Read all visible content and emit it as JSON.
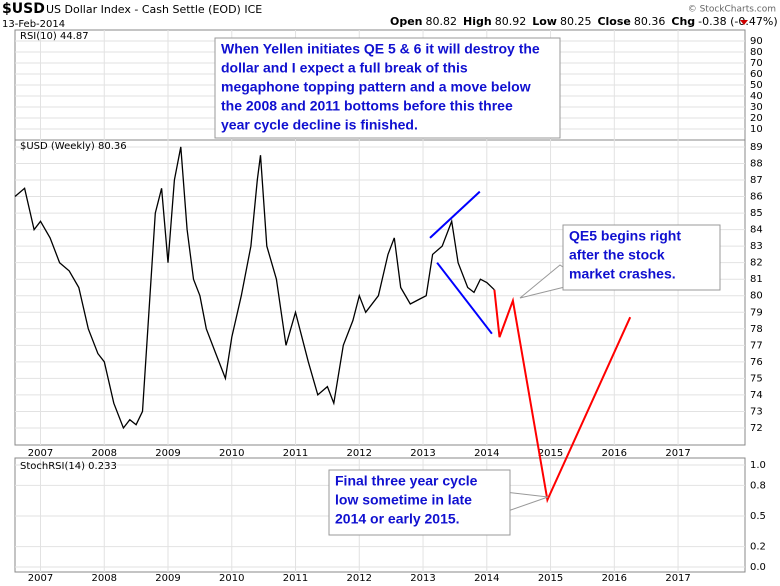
{
  "header": {
    "symbol": "$USD",
    "name": "US Dollar Index - Cash Settle (EOD) ICE",
    "date": "13-Feb-2014",
    "copyright": "© StockCharts.com",
    "quote": [
      {
        "label": "Open",
        "value": "80.82"
      },
      {
        "label": "High",
        "value": "80.92"
      },
      {
        "label": "Low",
        "value": "80.25"
      },
      {
        "label": "Close",
        "value": "80.36"
      },
      {
        "label": "Chg",
        "value": "-0.38 (-0.47%)"
      }
    ]
  },
  "rsi_panel": {
    "legend": "RSI(10) 44.87",
    "ylim": [
      0,
      100
    ],
    "yticks": [
      90,
      80,
      70,
      60,
      50,
      40,
      30,
      20,
      10
    ]
  },
  "stoch_panel": {
    "legend": "StochRSI(14) 0.233",
    "ylim": [
      -0.049,
      1.069
    ],
    "yticks": [
      {
        "value": 1,
        "label": "1.0"
      },
      0.8,
      0.5,
      0.2,
      {
        "value": 0,
        "label": "0.0"
      }
    ]
  },
  "annotations": [
    {
      "lines": [
        "When Yellen initiates QE 5 & 6 it will destroy the",
        "dollar and I expect a full break of this",
        "megaphone topping pattern and a move below",
        "the 2008 and 2011 bottoms before this three",
        "year cycle decline is finished."
      ]
    },
    {
      "lines": [
        "QE5 begins right",
        "after the stock",
        "market crashes."
      ]
    },
    {
      "lines": [
        "Final three year cycle",
        "low sometime in late",
        "2014 or early 2015."
      ]
    }
  ],
  "chart_data": {
    "type": "line",
    "grid": true,
    "xlim": [
      2006.6,
      2018.05
    ],
    "xticks": [
      2007,
      2008,
      2009,
      2010,
      2011,
      2012,
      2013,
      2014,
      2015,
      2016,
      2017
    ],
    "ylim": [
      70.97,
      89.42
    ],
    "yticks": [
      72,
      73,
      74,
      75,
      76,
      77,
      78,
      79,
      80,
      81,
      82,
      83,
      84,
      85,
      86,
      87,
      88,
      89
    ],
    "series": [
      {
        "name": "$USD (Weekly) 80.36",
        "color": "#000000",
        "x": [
          2006.6,
          2006.75,
          2006.9,
          2007.0,
          2007.15,
          2007.3,
          2007.45,
          2007.6,
          2007.75,
          2007.9,
          2008.0,
          2008.15,
          2008.3,
          2008.4,
          2008.5,
          2008.6,
          2008.7,
          2008.8,
          2008.9,
          2009.0,
          2009.1,
          2009.2,
          2009.3,
          2009.4,
          2009.5,
          2009.6,
          2009.75,
          2009.9,
          2010.0,
          2010.15,
          2010.3,
          2010.4,
          2010.45,
          2010.55,
          2010.7,
          2010.85,
          2011.0,
          2011.2,
          2011.35,
          2011.5,
          2011.6,
          2011.75,
          2011.9,
          2012.0,
          2012.1,
          2012.3,
          2012.45,
          2012.55,
          2012.65,
          2012.8,
          2012.95,
          2013.05,
          2013.15,
          2013.3,
          2013.45,
          2013.55,
          2013.7,
          2013.8,
          2013.9,
          2014.0,
          2014.12
        ],
        "values": [
          86,
          86.5,
          84,
          84.5,
          83.5,
          82,
          81.5,
          80.5,
          78,
          76.5,
          76,
          73.5,
          72,
          72.5,
          72.2,
          73,
          79,
          85,
          86.5,
          82,
          87,
          89,
          84,
          81,
          80,
          78,
          76.5,
          75,
          77.5,
          80,
          83,
          87,
          88.5,
          83,
          81,
          77,
          79,
          76,
          74,
          74.5,
          73.5,
          77,
          78.5,
          80,
          79,
          80,
          82.5,
          83.5,
          80.5,
          79.5,
          79.8,
          80,
          82.5,
          83,
          84.5,
          82,
          80.5,
          80.2,
          81,
          80.8,
          80.36
        ]
      },
      {
        "color": "#ff0000",
        "x": [
          2014.12,
          2014.2,
          2014.41,
          2014.95,
          2016.25
        ],
        "values": [
          80.36,
          77.5,
          79.7,
          67.65,
          78.7
        ]
      },
      {
        "color": "#0000ff",
        "x": [
          2013.11,
          2013.89
        ],
        "values": [
          83.5,
          86.3
        ]
      },
      {
        "color": "#0000ff",
        "x": [
          2013.22,
          2014.08
        ],
        "values": [
          82.0,
          77.7
        ]
      }
    ]
  }
}
